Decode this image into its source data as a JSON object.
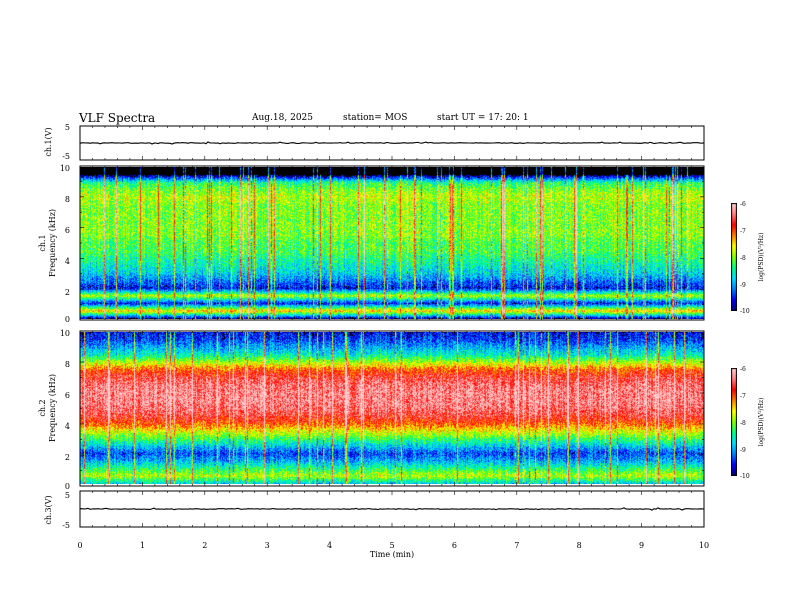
{
  "header": {
    "title": "VLF Spectra",
    "date": "Aug.18, 2025",
    "station": "station= MOS",
    "start_ut": "start  UT  =   17: 20: 1"
  },
  "colors": {
    "cmap": [
      "#00007a",
      "#0000ff",
      "#0080ff",
      "#00e0ff",
      "#00ff80",
      "#80ff00",
      "#ffff00",
      "#ff8000",
      "#ff0000",
      "#ff8080",
      "#ffd0d0"
    ],
    "background": "#000000"
  },
  "chart_data": [
    {
      "type": "line",
      "name": "channel-1-voltage",
      "ylabel": "ch.1(V)",
      "ylim": [
        -5,
        5
      ],
      "yticks": [
        "5",
        "-5"
      ],
      "level": 0,
      "x": [
        0,
        10
      ],
      "xlim": [
        0,
        10
      ]
    },
    {
      "type": "heatmap",
      "name": "channel-1-spectrogram",
      "ylabel": "ch.1",
      "ylabel2": "Frequency (kHz)",
      "ylim": [
        0,
        10
      ],
      "yticks": [
        "0",
        "2",
        "4",
        "6",
        "8",
        "10"
      ],
      "xlim": [
        0,
        10
      ],
      "profile_khz": [
        0,
        0.5,
        1,
        1.5,
        2,
        2.5,
        3,
        3.5,
        4,
        4.5,
        5,
        5.5,
        6,
        6.5,
        7,
        7.5,
        8,
        8.5,
        9,
        9.5,
        10
      ],
      "profile_level": [
        0.05,
        0.65,
        0.1,
        0.55,
        0.1,
        0.2,
        0.3,
        0.35,
        0.4,
        0.45,
        0.45,
        0.5,
        0.5,
        0.5,
        0.5,
        0.5,
        0.55,
        0.5,
        0.4,
        0.0,
        0.0
      ],
      "colorbar": {
        "label": "log(PSD)(V²/Hz)",
        "ticks": [
          "-6",
          "-7",
          "-8",
          "-9",
          "-10"
        ],
        "range": [
          -10,
          -6
        ]
      }
    },
    {
      "type": "heatmap",
      "name": "channel-2-spectrogram",
      "ylabel": "ch.2",
      "ylabel2": "Frequency (kHz)",
      "ylim": [
        0,
        10
      ],
      "yticks": [
        "0",
        "2",
        "4",
        "6",
        "8",
        "10"
      ],
      "xlim": [
        0,
        10
      ],
      "profile_khz": [
        0,
        0.5,
        1,
        1.5,
        2,
        2.5,
        3,
        3.5,
        4,
        4.5,
        5,
        5.5,
        6,
        6.5,
        7,
        7.5,
        8,
        8.5,
        9,
        9.5,
        10
      ],
      "profile_level": [
        0.3,
        0.55,
        0.4,
        0.25,
        0.15,
        0.3,
        0.45,
        0.6,
        0.75,
        0.85,
        0.9,
        0.92,
        0.92,
        0.9,
        0.85,
        0.75,
        0.55,
        0.35,
        0.25,
        0.15,
        0.1
      ],
      "colorbar": {
        "label": "log(PSD)(V²/Hz)",
        "ticks": [
          "-6",
          "-7",
          "-8",
          "-9",
          "-10"
        ],
        "range": [
          -10,
          -6
        ]
      }
    },
    {
      "type": "line",
      "name": "channel-3-voltage",
      "ylabel": "ch.3(V)",
      "ylim": [
        -5,
        5
      ],
      "yticks": [
        "5",
        "-5"
      ],
      "level": 0,
      "x": [
        0,
        10
      ],
      "xlim": [
        0,
        10
      ]
    }
  ],
  "x_axis": {
    "label": "Time (min)",
    "ticks": [
      "0",
      "1",
      "2",
      "3",
      "4",
      "5",
      "6",
      "7",
      "8",
      "9",
      "10"
    ]
  }
}
